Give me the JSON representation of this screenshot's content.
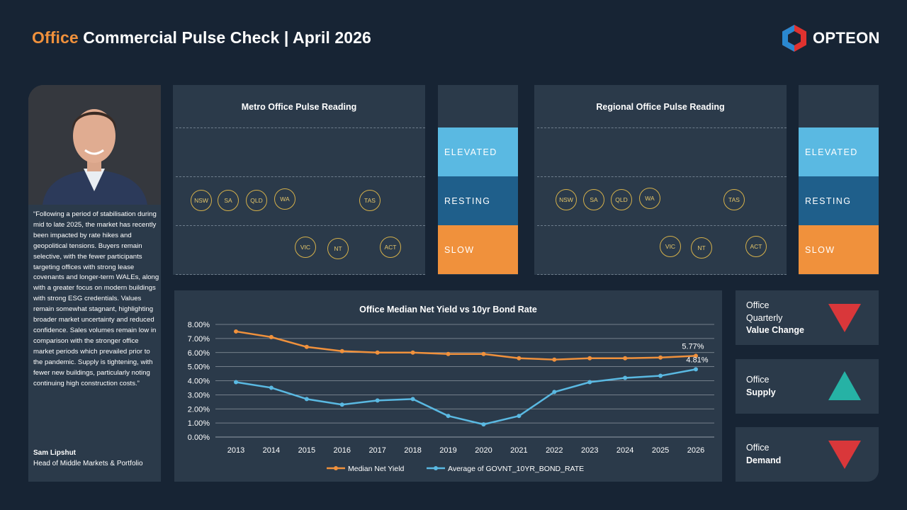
{
  "header": {
    "title_accent": "Office",
    "title_rest": " Commercial Pulse Check | April 2026",
    "logo_text": "OPTEON"
  },
  "profile": {
    "quote": "“Following a period of stabilisation during mid to late 2025, the market has recently been impacted by rate hikes and geopolitical tensions. Buyers remain selective, with the fewer participants targeting offices with strong lease covenants and longer-term WALEs, along with a greater focus on modern buildings with strong ESG credentials. Values remain somewhat stagnant, highlighting broader market uncertainty and reduced confidence. Sales volumes remain low in comparison with the stronger office market periods which prevailed prior to the pandemic. Supply is tightening, with fewer new buildings, particularly noting continuing high construction costs.”",
    "name": "Sam Lipshut",
    "role": "Head of Middle Markets & Portfolio"
  },
  "metro": {
    "title": "Metro Office Pulse Reading",
    "resting": [
      "NSW",
      "SA",
      "QLD",
      "WA",
      "TAS"
    ],
    "slow": [
      "VIC",
      "NT",
      "ACT"
    ]
  },
  "regional": {
    "title": "Regional Office Pulse Reading",
    "resting": [
      "NSW",
      "SA",
      "QLD",
      "WA",
      "TAS"
    ],
    "slow": [
      "VIC",
      "NT",
      "ACT"
    ]
  },
  "scale": {
    "elevated": "ELEVATED",
    "resting": "RESTING",
    "slow": "SLOW",
    "colors": {
      "elevated": "#5ab9e2",
      "resting": "#1f5f8b",
      "slow": "#f0913c"
    }
  },
  "indicators": [
    {
      "line1": "Office",
      "line2": "Quarterly",
      "bold": "Value Change",
      "direction": "down",
      "color": "#d9373a"
    },
    {
      "line1": "Office",
      "line2": "",
      "bold": "Supply",
      "direction": "up",
      "color": "#26b2a5"
    },
    {
      "line1": "Office",
      "line2": "",
      "bold": "Demand",
      "direction": "down",
      "color": "#d9373a"
    }
  ],
  "chart_data": {
    "type": "line",
    "title": "Office Median Net Yield vs 10yr Bond Rate",
    "categories": [
      "2013",
      "2014",
      "2015",
      "2016",
      "2017",
      "2018",
      "2019",
      "2020",
      "2021",
      "2022",
      "2023",
      "2024",
      "2025",
      "2026"
    ],
    "series": [
      {
        "name": "Median Net Yield",
        "color": "#f0913c",
        "values": [
          7.5,
          7.1,
          6.4,
          6.1,
          6.0,
          6.0,
          5.9,
          5.9,
          5.6,
          5.5,
          5.6,
          5.6,
          5.65,
          5.77
        ]
      },
      {
        "name": "Average of GOVNT_10YR_BOND_RATE",
        "color": "#5ab9e2",
        "values": [
          3.9,
          3.5,
          2.7,
          2.3,
          2.6,
          2.7,
          1.5,
          0.9,
          1.5,
          3.2,
          3.9,
          4.2,
          4.35,
          4.81
        ]
      }
    ],
    "yticks": [
      "0.00%",
      "1.00%",
      "2.00%",
      "3.00%",
      "4.00%",
      "5.00%",
      "6.00%",
      "7.00%",
      "8.00%"
    ],
    "ylim": [
      0,
      8
    ],
    "data_labels": [
      "5.77%",
      "4.81%"
    ],
    "grid": true,
    "legend": "bottom"
  }
}
